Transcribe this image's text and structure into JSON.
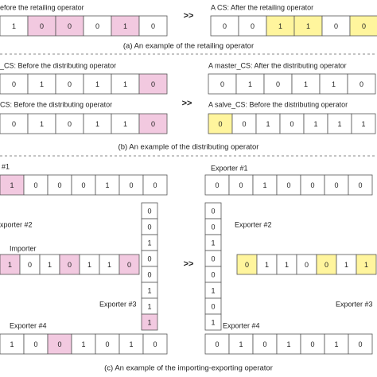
{
  "retailing": {
    "before": {
      "label": "efore the retailing operator",
      "cells": [
        {
          "value": 1,
          "fill": "#ffffff"
        },
        {
          "value": 0,
          "fill": "#f2c9e0"
        },
        {
          "value": 0,
          "fill": "#f2c9e0"
        },
        {
          "value": 0,
          "fill": "#ffffff"
        },
        {
          "value": 1,
          "fill": "#f2c9e0"
        },
        {
          "value": 0,
          "fill": "#ffffff"
        }
      ]
    },
    "arrow": ">>",
    "after": {
      "label": "A CS: After the retailing operator",
      "cells": [
        {
          "value": 0,
          "fill": "#ffffff"
        },
        {
          "value": 0,
          "fill": "#ffffff"
        },
        {
          "value": 1,
          "fill": "#fff59d"
        },
        {
          "value": 1,
          "fill": "#fff59d"
        },
        {
          "value": 0,
          "fill": "#ffffff"
        },
        {
          "value": 0,
          "fill": "#fff59d"
        }
      ]
    },
    "caption": "(a) An example of the retailing operator"
  },
  "distributing": {
    "before_master": {
      "label": "_CS: Before the distributing operator",
      "cells": [
        {
          "value": 0,
          "fill": "#ffffff"
        },
        {
          "value": 1,
          "fill": "#ffffff"
        },
        {
          "value": 0,
          "fill": "#ffffff"
        },
        {
          "value": 1,
          "fill": "#ffffff"
        },
        {
          "value": 1,
          "fill": "#ffffff"
        },
        {
          "value": 0,
          "fill": "#f2c9e0"
        }
      ]
    },
    "before_salve": {
      "label": "CS: Before the distributing operator",
      "cells": [
        {
          "value": 0,
          "fill": "#ffffff"
        },
        {
          "value": 1,
          "fill": "#ffffff"
        },
        {
          "value": 0,
          "fill": "#ffffff"
        },
        {
          "value": 1,
          "fill": "#ffffff"
        },
        {
          "value": 1,
          "fill": "#ffffff"
        },
        {
          "value": 0,
          "fill": "#f2c9e0"
        }
      ]
    },
    "arrow": ">>",
    "after_master": {
      "label": "A master_CS: After the distributing operator",
      "cells": [
        {
          "value": 0,
          "fill": "#ffffff"
        },
        {
          "value": 1,
          "fill": "#ffffff"
        },
        {
          "value": 0,
          "fill": "#ffffff"
        },
        {
          "value": 1,
          "fill": "#ffffff"
        },
        {
          "value": 1,
          "fill": "#ffffff"
        },
        {
          "value": 0,
          "fill": "#ffffff"
        }
      ]
    },
    "after_salve": {
      "label": "A salve_CS: Before the distributing operator",
      "cells": [
        {
          "value": 0,
          "fill": "#fff59d"
        },
        {
          "value": 0,
          "fill": "#ffffff"
        },
        {
          "value": 1,
          "fill": "#ffffff"
        },
        {
          "value": 0,
          "fill": "#ffffff"
        },
        {
          "value": 1,
          "fill": "#ffffff"
        },
        {
          "value": 1,
          "fill": "#ffffff"
        },
        {
          "value": 1,
          "fill": "#ffffff"
        }
      ]
    },
    "caption": "(b) An example of the distributing operator"
  },
  "importing_exporting": {
    "before": {
      "exporter1": {
        "label": "#1",
        "cells": [
          {
            "value": 1,
            "fill": "#f2c9e0"
          },
          {
            "value": 0,
            "fill": "#ffffff"
          },
          {
            "value": 0,
            "fill": "#ffffff"
          },
          {
            "value": 0,
            "fill": "#ffffff"
          },
          {
            "value": 1,
            "fill": "#ffffff"
          },
          {
            "value": 0,
            "fill": "#ffffff"
          },
          {
            "value": 0,
            "fill": "#ffffff"
          }
        ]
      },
      "exporter2": {
        "label": "xporter #2",
        "cells": [
          {
            "value": 0,
            "fill": "#ffffff"
          },
          {
            "value": 0,
            "fill": "#ffffff"
          },
          {
            "value": 1,
            "fill": "#ffffff"
          },
          {
            "value": 0,
            "fill": "#ffffff"
          },
          {
            "value": 0,
            "fill": "#ffffff"
          },
          {
            "value": 1,
            "fill": "#ffffff"
          },
          {
            "value": 1,
            "fill": "#ffffff"
          },
          {
            "value": 1,
            "fill": "#f2c9e0"
          }
        ]
      },
      "importer": {
        "label": "Importer",
        "cells": [
          {
            "value": 1,
            "fill": "#f2c9e0"
          },
          {
            "value": 0,
            "fill": "#ffffff"
          },
          {
            "value": 1,
            "fill": "#ffffff"
          },
          {
            "value": 0,
            "fill": "#f2c9e0"
          },
          {
            "value": 1,
            "fill": "#ffffff"
          },
          {
            "value": 1,
            "fill": "#ffffff"
          },
          {
            "value": 0,
            "fill": "#f2c9e0"
          }
        ]
      },
      "exporter3": {
        "label": "Exporter #3"
      },
      "exporter4": {
        "label": "Exporter #4",
        "cells": [
          {
            "value": 1,
            "fill": "#ffffff"
          },
          {
            "value": 0,
            "fill": "#ffffff"
          },
          {
            "value": 0,
            "fill": "#f2c9e0"
          },
          {
            "value": 1,
            "fill": "#ffffff"
          },
          {
            "value": 0,
            "fill": "#ffffff"
          },
          {
            "value": 1,
            "fill": "#ffffff"
          },
          {
            "value": 0,
            "fill": "#ffffff"
          }
        ]
      }
    },
    "arrow": ">>",
    "after": {
      "exporter1": {
        "label": "Exporter #1",
        "cells": [
          {
            "value": 0,
            "fill": "#ffffff"
          },
          {
            "value": 0,
            "fill": "#ffffff"
          },
          {
            "value": 1,
            "fill": "#ffffff"
          },
          {
            "value": 0,
            "fill": "#ffffff"
          },
          {
            "value": 0,
            "fill": "#ffffff"
          },
          {
            "value": 0,
            "fill": "#ffffff"
          },
          {
            "value": 0,
            "fill": "#ffffff"
          }
        ]
      },
      "exporter2": {
        "label": "Exporter #2",
        "cells": [
          {
            "value": 0,
            "fill": "#ffffff"
          },
          {
            "value": 0,
            "fill": "#ffffff"
          },
          {
            "value": 1,
            "fill": "#ffffff"
          },
          {
            "value": 0,
            "fill": "#ffffff"
          },
          {
            "value": 0,
            "fill": "#ffffff"
          },
          {
            "value": 1,
            "fill": "#ffffff"
          },
          {
            "value": 0,
            "fill": "#ffffff"
          },
          {
            "value": 1,
            "fill": "#ffffff"
          }
        ]
      },
      "importer": {
        "cells": [
          {
            "value": 0,
            "fill": "#fff59d"
          },
          {
            "value": 1,
            "fill": "#ffffff"
          },
          {
            "value": 1,
            "fill": "#ffffff"
          },
          {
            "value": 0,
            "fill": "#ffffff"
          },
          {
            "value": 0,
            "fill": "#fff59d"
          },
          {
            "value": 1,
            "fill": "#ffffff"
          },
          {
            "value": 1,
            "fill": "#fff59d"
          }
        ]
      },
      "exporter3": {
        "label": "Exporter #3"
      },
      "exporter4": {
        "label": "Exporter #4",
        "cells": [
          {
            "value": 0,
            "fill": "#ffffff"
          },
          {
            "value": 1,
            "fill": "#ffffff"
          },
          {
            "value": 0,
            "fill": "#ffffff"
          },
          {
            "value": 1,
            "fill": "#ffffff"
          },
          {
            "value": 0,
            "fill": "#ffffff"
          },
          {
            "value": 1,
            "fill": "#ffffff"
          },
          {
            "value": 0,
            "fill": "#ffffff"
          }
        ]
      }
    },
    "caption": "(c) An example of the importing-exporting operator"
  }
}
